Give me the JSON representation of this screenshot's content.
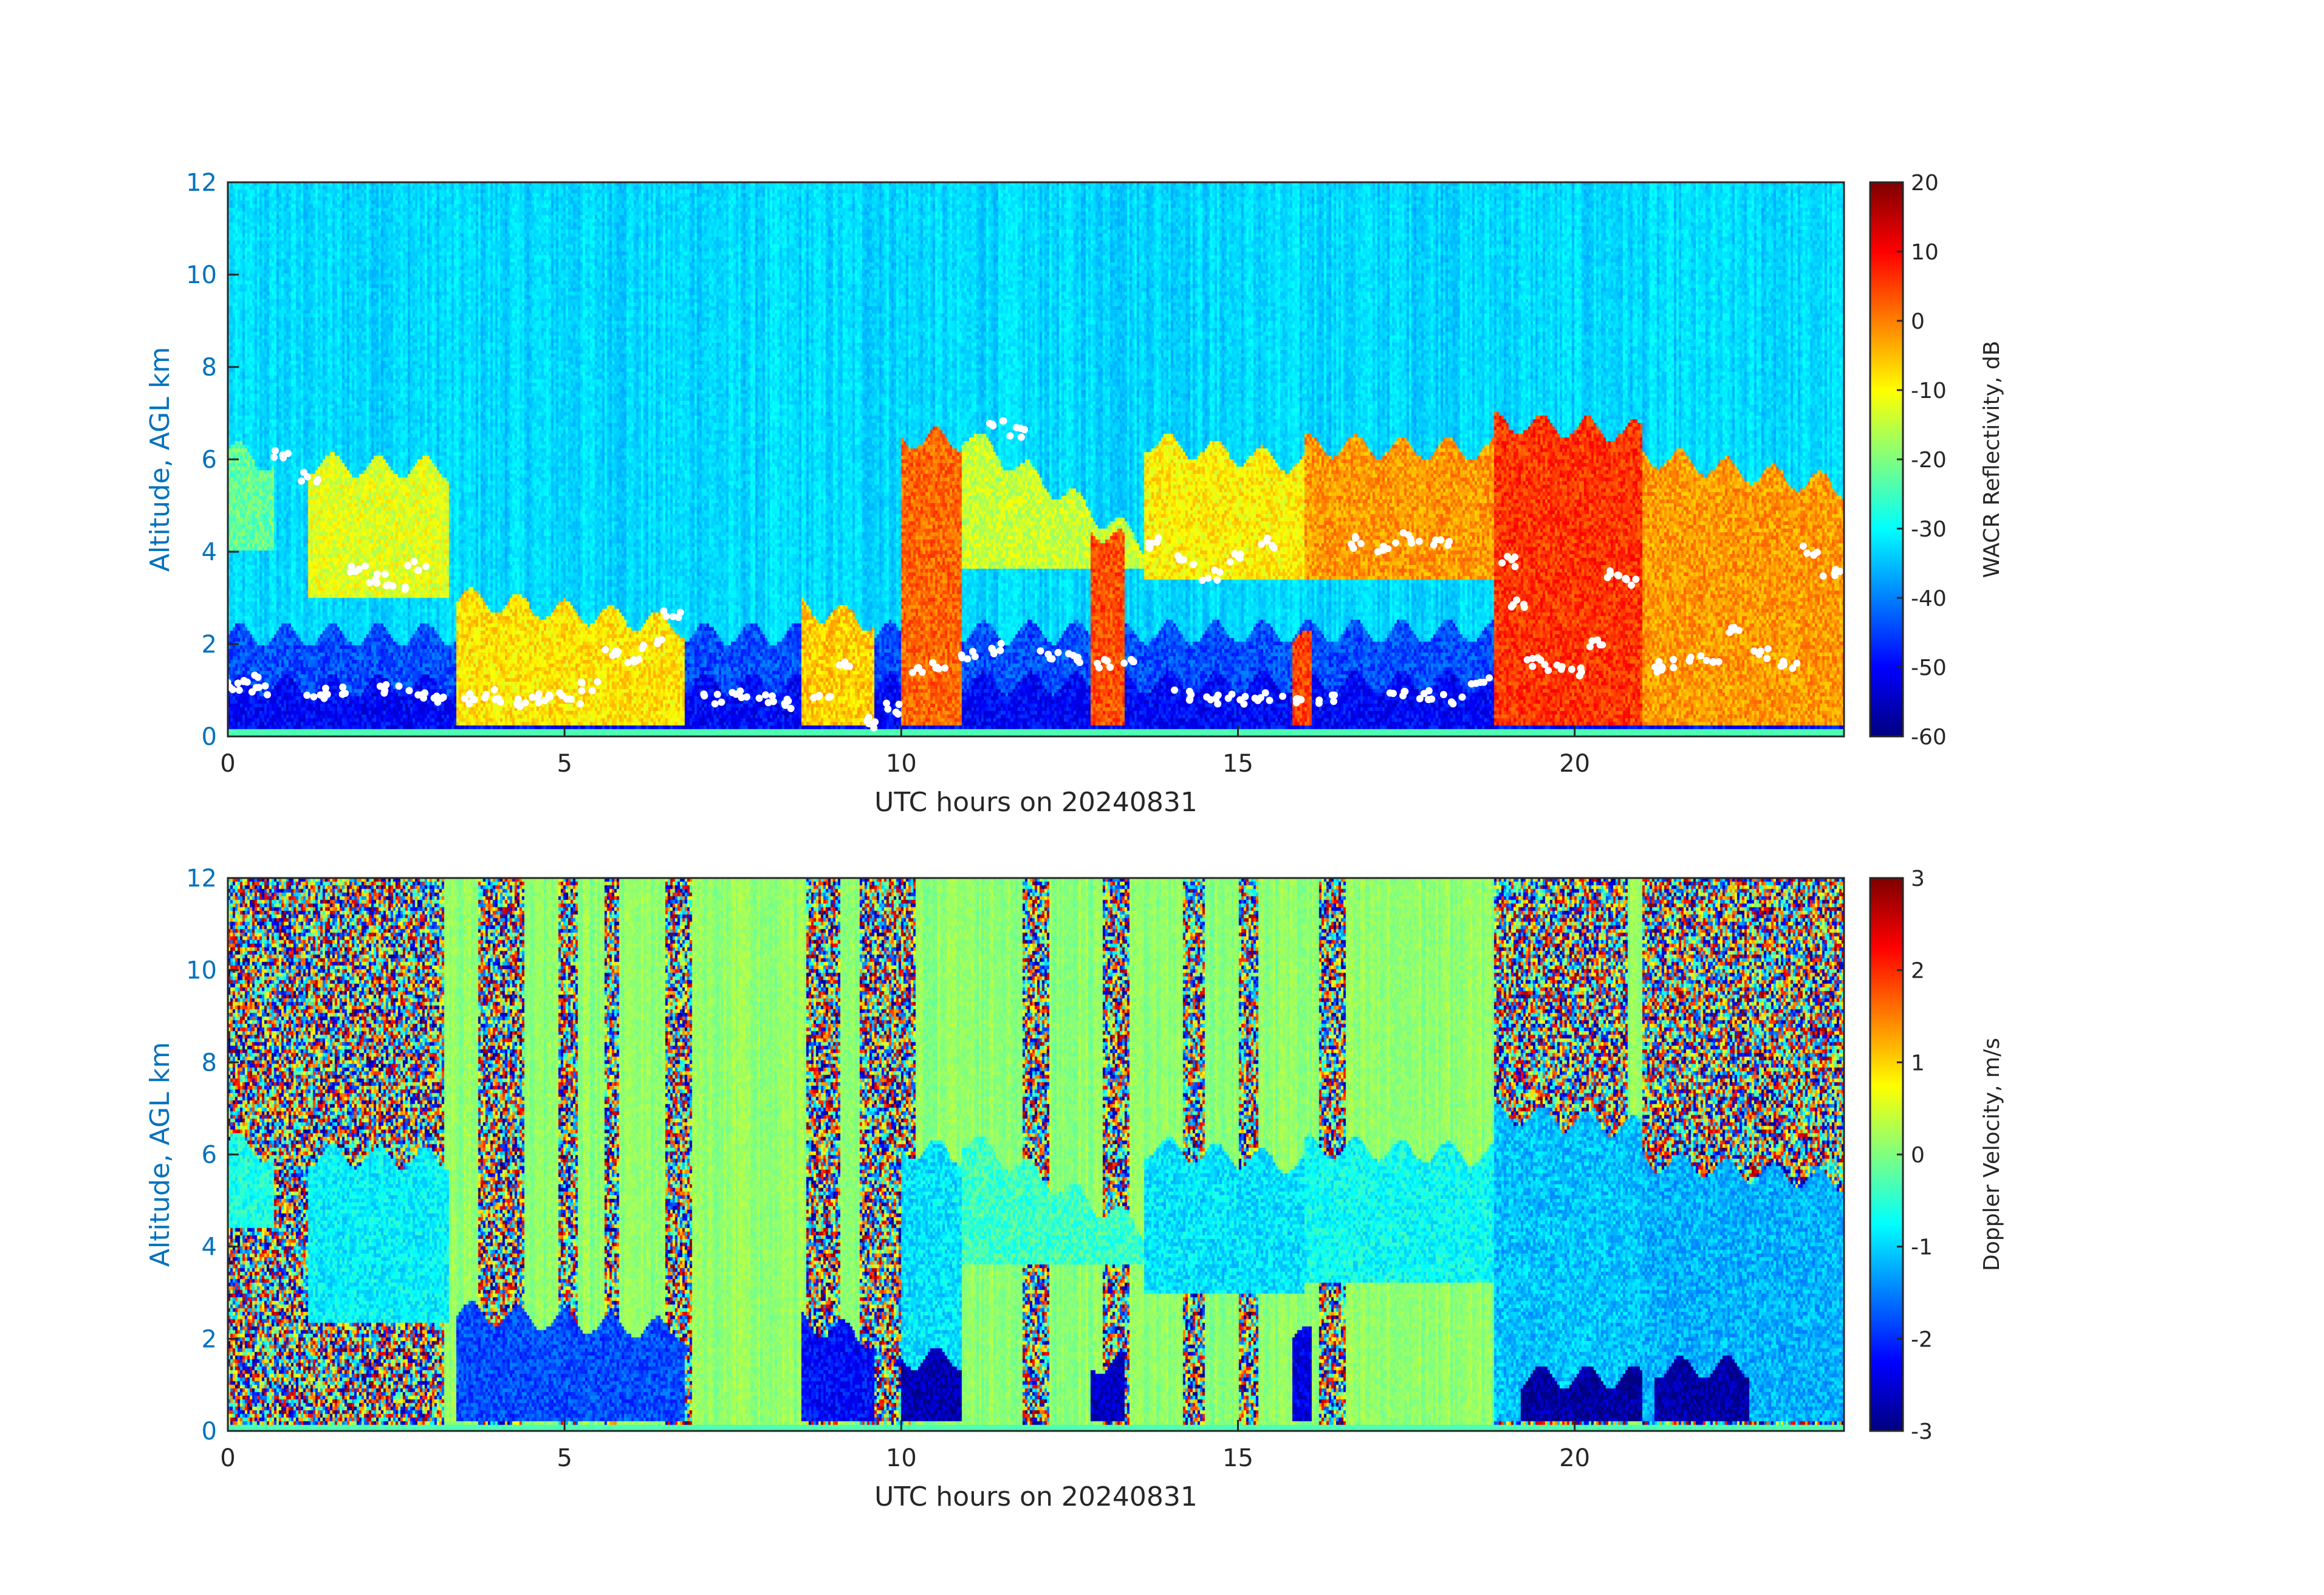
{
  "chart_data": [
    {
      "type": "heatmap",
      "xlabel": "UTC hours on 20240831",
      "ylabel": "Altitude, AGL km",
      "xlim": [
        0,
        24
      ],
      "ylim": [
        0,
        12
      ],
      "xticks": [
        0,
        5,
        10,
        15,
        20
      ],
      "yticks": [
        0,
        2,
        4,
        6,
        8,
        10,
        12
      ],
      "colorbar": {
        "label": "WACR Reflectivity, dB",
        "range": [
          -60,
          20
        ],
        "ticks": [
          -60,
          -50,
          -40,
          -30,
          -20,
          -10,
          0,
          10,
          20
        ],
        "colormap": "jet"
      },
      "background_value": -33,
      "layers": [
        {
          "x": [
            0,
            24
          ],
          "top": [
            2.2,
            2.3
          ],
          "bottom": 0,
          "value": -44
        },
        {
          "x": [
            0,
            24
          ],
          "top": [
            1.1,
            1.2
          ],
          "bottom": 0,
          "value": -50
        },
        {
          "x": [
            0,
            0.7
          ],
          "top": [
            6.2,
            5.9
          ],
          "bottom": 4.0,
          "value": -22
        },
        {
          "x": [
            1.2,
            3.3
          ],
          "top": [
            5.9,
            5.8
          ],
          "bottom": 3.0,
          "value": -12
        },
        {
          "x": [
            3.4,
            6.8
          ],
          "top": [
            3.0,
            2.4
          ],
          "bottom": 0.2,
          "value": -8
        },
        {
          "x": [
            8.5,
            9.6
          ],
          "top": [
            2.8,
            2.5
          ],
          "bottom": 0.2,
          "value": -6
        },
        {
          "x": [
            10.0,
            10.9
          ],
          "top": [
            6.5,
            6.4
          ],
          "bottom": 0.2,
          "value": 2
        },
        {
          "x": [
            10.9,
            13.6
          ],
          "top": [
            6.6,
            4.2
          ],
          "bottom": 3.6,
          "value": -14
        },
        {
          "x": [
            12.8,
            13.3
          ],
          "top": [
            4.6,
            4.2
          ],
          "bottom": 0.2,
          "value": 4
        },
        {
          "x": [
            13.6,
            16.0
          ],
          "top": [
            6.4,
            5.9
          ],
          "bottom": 3.4,
          "value": -9
        },
        {
          "x": [
            15.8,
            16.1
          ],
          "top": [
            2.2,
            2.0
          ],
          "bottom": 0.2,
          "value": 5
        },
        {
          "x": [
            16.0,
            18.8
          ],
          "top": [
            6.3,
            6.2
          ],
          "bottom": 3.4,
          "value": -2
        },
        {
          "x": [
            18.8,
            21.0
          ],
          "top": [
            6.8,
            6.6
          ],
          "bottom": 0.2,
          "value": 6
        },
        {
          "x": [
            21.0,
            24.0
          ],
          "top": [
            6.1,
            5.4
          ],
          "bottom": 0.2,
          "value": -2
        }
      ],
      "cloud_base_points": [
        [
          0.1,
          1.1
        ],
        [
          0.3,
          1.2
        ],
        [
          0.5,
          1.0
        ],
        [
          0.8,
          6.1
        ],
        [
          1.2,
          5.6
        ],
        [
          1.3,
          0.9
        ],
        [
          1.6,
          1.0
        ],
        [
          1.9,
          3.6
        ],
        [
          2.2,
          3.4
        ],
        [
          2.5,
          3.3
        ],
        [
          2.8,
          3.7
        ],
        [
          2.4,
          1.0
        ],
        [
          2.8,
          0.9
        ],
        [
          3.2,
          0.8
        ],
        [
          3.6,
          0.8
        ],
        [
          3.9,
          0.9
        ],
        [
          4.2,
          0.7
        ],
        [
          4.5,
          0.8
        ],
        [
          4.8,
          0.9
        ],
        [
          5.1,
          0.8
        ],
        [
          5.4,
          1.1
        ],
        [
          5.7,
          1.8
        ],
        [
          6.0,
          1.7
        ],
        [
          6.3,
          2.0
        ],
        [
          6.6,
          2.6
        ],
        [
          7.2,
          0.8
        ],
        [
          7.6,
          0.9
        ],
        [
          8.0,
          0.8
        ],
        [
          8.4,
          0.7
        ],
        [
          8.8,
          0.9
        ],
        [
          9.2,
          1.5
        ],
        [
          9.6,
          0.3
        ],
        [
          9.9,
          0.6
        ],
        [
          10.2,
          1.4
        ],
        [
          10.6,
          1.5
        ],
        [
          11.0,
          1.8
        ],
        [
          11.4,
          1.9
        ],
        [
          11.7,
          6.6
        ],
        [
          11.4,
          6.8
        ],
        [
          12.2,
          1.8
        ],
        [
          12.6,
          1.7
        ],
        [
          13.0,
          1.6
        ],
        [
          13.4,
          1.7
        ],
        [
          13.8,
          4.2
        ],
        [
          14.2,
          3.8
        ],
        [
          14.6,
          3.5
        ],
        [
          15.0,
          3.9
        ],
        [
          15.4,
          4.2
        ],
        [
          14.2,
          0.9
        ],
        [
          14.6,
          0.8
        ],
        [
          15.0,
          0.8
        ],
        [
          15.4,
          0.9
        ],
        [
          15.8,
          0.8
        ],
        [
          16.3,
          0.8
        ],
        [
          16.8,
          4.2
        ],
        [
          17.2,
          4.1
        ],
        [
          17.6,
          4.3
        ],
        [
          18.0,
          4.2
        ],
        [
          17.4,
          1.0
        ],
        [
          17.8,
          0.9
        ],
        [
          18.2,
          0.8
        ],
        [
          18.6,
          1.2
        ],
        [
          19.0,
          3.8
        ],
        [
          19.2,
          2.9
        ],
        [
          19.4,
          1.6
        ],
        [
          19.7,
          1.5
        ],
        [
          20.0,
          1.4
        ],
        [
          20.3,
          2.0
        ],
        [
          20.6,
          3.5
        ],
        [
          20.9,
          3.4
        ],
        [
          21.2,
          1.5
        ],
        [
          21.6,
          1.6
        ],
        [
          22.0,
          1.7
        ],
        [
          22.4,
          2.3
        ],
        [
          22.8,
          1.8
        ],
        [
          23.2,
          1.6
        ],
        [
          23.5,
          4.0
        ],
        [
          23.8,
          3.6
        ]
      ]
    },
    {
      "type": "heatmap",
      "xlabel": "UTC hours on 20240831",
      "ylabel": "Altitude, AGL km",
      "xlim": [
        0,
        24
      ],
      "ylim": [
        0,
        12
      ],
      "xticks": [
        0,
        5,
        10,
        15,
        20
      ],
      "yticks": [
        0,
        2,
        4,
        6,
        8,
        10,
        12
      ],
      "colorbar": {
        "label": "Doppler Velocity, m/s",
        "range": [
          -3,
          3
        ],
        "ticks": [
          -3,
          -2,
          -1,
          0,
          1,
          2,
          3
        ],
        "colormap": "jet"
      },
      "background_value": 0.1,
      "noise_bands": [
        [
          0,
          3.2
        ],
        [
          3.7,
          4.4
        ],
        [
          4.9,
          5.2
        ],
        [
          5.6,
          5.8
        ],
        [
          6.5,
          6.9
        ],
        [
          8.6,
          9.1
        ],
        [
          9.4,
          10.2
        ],
        [
          11.8,
          12.2
        ],
        [
          13.0,
          13.4
        ],
        [
          14.2,
          14.5
        ],
        [
          15.0,
          15.3
        ],
        [
          16.2,
          16.6
        ],
        [
          18.8,
          20.8
        ],
        [
          21.0,
          24.0
        ]
      ],
      "layers": [
        {
          "x": [
            0,
            0.7
          ],
          "top": [
            6.3,
            6.0
          ],
          "bottom": 4.4,
          "value": -0.6
        },
        {
          "x": [
            1.2,
            3.3
          ],
          "top": [
            6.0,
            5.9
          ],
          "bottom": 2.4,
          "value": -0.8
        },
        {
          "x": [
            3.4,
            6.8
          ],
          "top": [
            2.6,
            2.2
          ],
          "bottom": 0.2,
          "value": -1.8
        },
        {
          "x": [
            8.5,
            9.6
          ],
          "top": [
            2.4,
            2.0
          ],
          "bottom": 0.2,
          "value": -2.2
        },
        {
          "x": [
            10.0,
            10.9
          ],
          "top": [
            6.2,
            6.0
          ],
          "bottom": 0.2,
          "value": -0.9
        },
        {
          "x": [
            10.0,
            10.9
          ],
          "top": [
            1.6,
            1.6
          ],
          "bottom": 0.2,
          "value": -2.7
        },
        {
          "x": [
            10.9,
            13.6
          ],
          "top": [
            6.4,
            4.4
          ],
          "bottom": 3.6,
          "value": -0.4
        },
        {
          "x": [
            12.8,
            13.3
          ],
          "top": [
            1.5,
            1.5
          ],
          "bottom": 0.2,
          "value": -2.6
        },
        {
          "x": [
            13.6,
            16.0
          ],
          "top": [
            6.2,
            5.8
          ],
          "bottom": 3.0,
          "value": -0.9
        },
        {
          "x": [
            15.8,
            16.1
          ],
          "top": [
            2.2,
            2.0
          ],
          "bottom": 0.2,
          "value": -2.4
        },
        {
          "x": [
            16.0,
            18.8
          ],
          "top": [
            6.2,
            6.0
          ],
          "bottom": 3.2,
          "value": -0.7
        },
        {
          "x": [
            18.8,
            21.0
          ],
          "top": [
            6.9,
            6.6
          ],
          "bottom": 0.2,
          "value": -1.1
        },
        {
          "x": [
            19.2,
            21.0
          ],
          "top": [
            1.2,
            1.2
          ],
          "bottom": 0.2,
          "value": -2.8
        },
        {
          "x": [
            21.0,
            24.0
          ],
          "top": [
            5.9,
            5.4
          ],
          "bottom": 0.2,
          "value": -1.2
        },
        {
          "x": [
            21.2,
            22.6
          ],
          "top": [
            1.4,
            1.4
          ],
          "bottom": 0.2,
          "value": -2.8
        }
      ]
    }
  ]
}
